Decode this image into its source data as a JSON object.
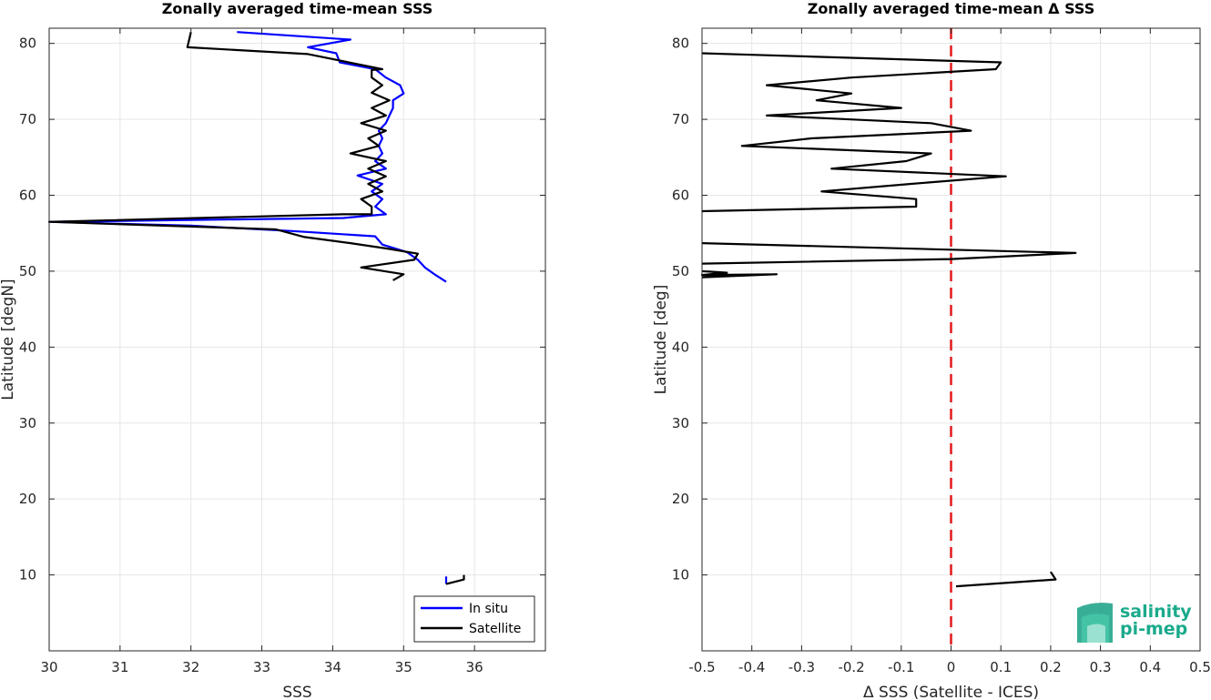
{
  "chart_data": [
    {
      "type": "line",
      "title": "Zonally averaged time-mean SSS",
      "xlabel": "SSS",
      "ylabel": "Latitude [degN]",
      "xlim": [
        30,
        37
      ],
      "ylim": [
        0,
        82
      ],
      "xticks": [
        30,
        31,
        32,
        33,
        34,
        35,
        36
      ],
      "yticks": [
        10,
        20,
        30,
        40,
        50,
        60,
        70,
        80
      ],
      "grid": true,
      "legend": "bottom-right",
      "series": [
        {
          "name": "In situ",
          "color": "#0000ff",
          "segments": [
            [
              [
                32.65,
                81.5
              ],
              [
                34.25,
                80.5
              ],
              [
                33.65,
                79.5
              ],
              [
                34.05,
                78.7
              ],
              [
                34.1,
                77.5
              ],
              [
                34.6,
                76.6
              ],
              [
                34.75,
                75.5
              ],
              [
                34.95,
                74.5
              ],
              [
                35.0,
                73.4
              ],
              [
                34.85,
                72.5
              ],
              [
                34.85,
                71.5
              ],
              [
                34.8,
                70.5
              ],
              [
                34.75,
                69.5
              ],
              [
                34.65,
                68.5
              ],
              [
                34.7,
                67.5
              ],
              [
                34.65,
                66.5
              ],
              [
                34.7,
                65.5
              ],
              [
                34.6,
                64.5
              ],
              [
                34.75,
                63.5
              ],
              [
                34.35,
                62.6
              ],
              [
                34.7,
                61.5
              ],
              [
                34.55,
                60.5
              ],
              [
                34.7,
                59.5
              ],
              [
                34.6,
                58.5
              ],
              [
                34.75,
                57.5
              ],
              [
                34.15,
                57.0
              ],
              [
                30.0,
                56.5
              ],
              [
                32.0,
                56.0
              ],
              [
                33.4,
                55.3
              ],
              [
                34.6,
                54.6
              ],
              [
                34.7,
                53.5
              ],
              [
                35.05,
                52.5
              ],
              [
                35.2,
                51.5
              ],
              [
                35.3,
                50.5
              ],
              [
                35.45,
                49.5
              ],
              [
                35.6,
                48.6
              ]
            ],
            [
              [
                35.6,
                9.8
              ],
              [
                35.6,
                8.8
              ]
            ]
          ]
        },
        {
          "name": "Satellite",
          "color": "#000000",
          "segments": [
            [
              [
                32.0,
                81.5
              ],
              [
                31.95,
                79.5
              ],
              [
                33.65,
                78.6
              ],
              [
                34.7,
                76.6
              ],
              [
                34.55,
                76.5
              ],
              [
                34.55,
                75.5
              ],
              [
                34.7,
                74.5
              ],
              [
                34.55,
                73.5
              ],
              [
                34.8,
                72.5
              ],
              [
                34.55,
                71.5
              ],
              [
                34.75,
                70.5
              ],
              [
                34.4,
                69.5
              ],
              [
                34.75,
                68.5
              ],
              [
                34.5,
                67.5
              ],
              [
                34.65,
                66.5
              ],
              [
                34.25,
                65.5
              ],
              [
                34.75,
                64.5
              ],
              [
                34.5,
                63.5
              ],
              [
                34.75,
                62.5
              ],
              [
                34.5,
                61.5
              ],
              [
                34.7,
                60.5
              ],
              [
                34.4,
                59.5
              ],
              [
                34.55,
                58.5
              ],
              [
                34.55,
                57.5
              ],
              [
                34.15,
                57.5
              ],
              [
                30.0,
                56.5
              ],
              [
                33.2,
                55.5
              ],
              [
                33.6,
                54.5
              ],
              [
                34.25,
                53.7
              ],
              [
                34.75,
                53.0
              ],
              [
                35.2,
                52.3
              ],
              [
                35.15,
                51.5
              ],
              [
                34.4,
                50.5
              ],
              [
                35.0,
                49.6
              ],
              [
                34.85,
                48.8
              ]
            ],
            [
              [
                35.6,
                8.8
              ],
              [
                35.85,
                9.4
              ],
              [
                35.85,
                10.0
              ]
            ]
          ]
        }
      ]
    },
    {
      "type": "line",
      "title": "Zonally averaged time-mean Δ SSS",
      "xlabel": "Δ SSS (Satellite - ICES)",
      "ylabel": "Latitude [deg]",
      "xlim": [
        -0.5,
        0.5
      ],
      "ylim": [
        0,
        82
      ],
      "xticks": [
        -0.5,
        -0.4,
        -0.3,
        -0.2,
        -0.1,
        0,
        0.1,
        0.2,
        0.3,
        0.4,
        0.5
      ],
      "xticklabels": [
        "-0.5",
        "-0.4",
        "-0.3",
        "-0.2",
        "-0.1",
        "0",
        "0.1",
        "0.2",
        "0.3",
        "0.4",
        "0.5"
      ],
      "yticks": [
        10,
        20,
        30,
        40,
        50,
        60,
        70,
        80
      ],
      "grid": true,
      "reference_line": {
        "x": 0,
        "color": "#e41a1c",
        "style": "dashed"
      },
      "series": [
        {
          "color": "#000000",
          "segments": [
            [
              [
                -0.5,
                78.7
              ],
              [
                -0.4,
                78.5
              ],
              [
                0.1,
                77.5
              ],
              [
                0.09,
                76.6
              ],
              [
                -0.2,
                75.5
              ],
              [
                -0.37,
                74.5
              ],
              [
                -0.2,
                73.4
              ],
              [
                -0.27,
                72.5
              ],
              [
                -0.1,
                71.5
              ],
              [
                -0.37,
                70.5
              ],
              [
                -0.04,
                69.5
              ],
              [
                0.04,
                68.5
              ],
              [
                -0.28,
                67.5
              ],
              [
                -0.42,
                66.5
              ],
              [
                -0.04,
                65.5
              ],
              [
                -0.09,
                64.5
              ],
              [
                -0.24,
                63.5
              ],
              [
                0.11,
                62.5
              ],
              [
                -0.08,
                61.5
              ],
              [
                -0.26,
                60.5
              ],
              [
                -0.07,
                59.5
              ],
              [
                -0.07,
                58.5
              ],
              [
                -0.5,
                57.9
              ]
            ],
            [
              [
                -0.5,
                53.7
              ],
              [
                0.25,
                52.4
              ],
              [
                0.0,
                51.6
              ],
              [
                -0.5,
                51.0
              ]
            ],
            [
              [
                -0.5,
                50.0
              ],
              [
                -0.45,
                49.8
              ],
              [
                -0.5,
                49.5
              ],
              [
                -0.35,
                49.6
              ],
              [
                -0.5,
                49.2
              ]
            ],
            [
              [
                0.01,
                8.5
              ],
              [
                0.21,
                9.4
              ],
              [
                0.2,
                10.4
              ]
            ]
          ]
        }
      ]
    }
  ],
  "logo": {
    "line1": "salinity",
    "line2": "pi-mep",
    "color": "#1aaa8c"
  }
}
